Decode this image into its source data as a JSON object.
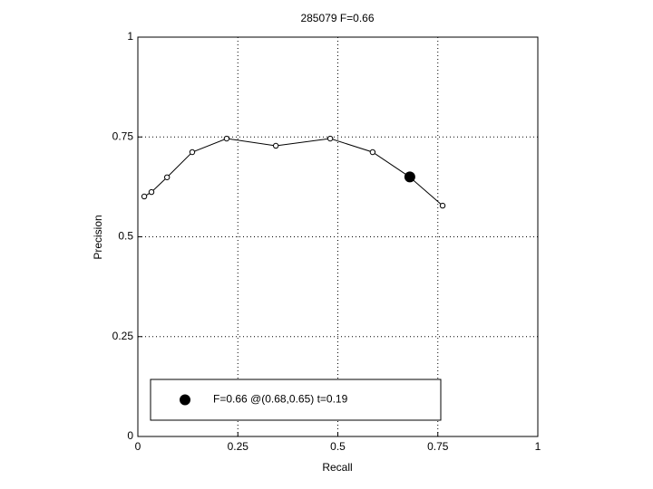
{
  "chart_data": {
    "type": "line",
    "title": "285079 F=0.66",
    "xlabel": "Recall",
    "ylabel": "Precision",
    "xlim": [
      0,
      1
    ],
    "ylim": [
      0,
      1
    ],
    "xticks": [
      0,
      0.25,
      0.5,
      0.75,
      1
    ],
    "yticks": [
      0,
      0.25,
      0.5,
      0.75,
      1
    ],
    "grid": true,
    "series": [
      {
        "color": "#000000",
        "marker": "open-circle",
        "x": [
          0.016,
          0.034,
          0.073,
          0.136,
          0.222,
          0.345,
          0.481,
          0.587,
          0.678,
          0.762
        ],
        "values": [
          0.601,
          0.612,
          0.649,
          0.712,
          0.746,
          0.728,
          0.746,
          0.712,
          0.651,
          0.578
        ]
      },
      {
        "name": "F=0.66 @(0.68,0.65) t=0.19",
        "color": "#000000",
        "marker": "filled-circle",
        "x": [
          0.68
        ],
        "values": [
          0.65
        ]
      }
    ]
  }
}
